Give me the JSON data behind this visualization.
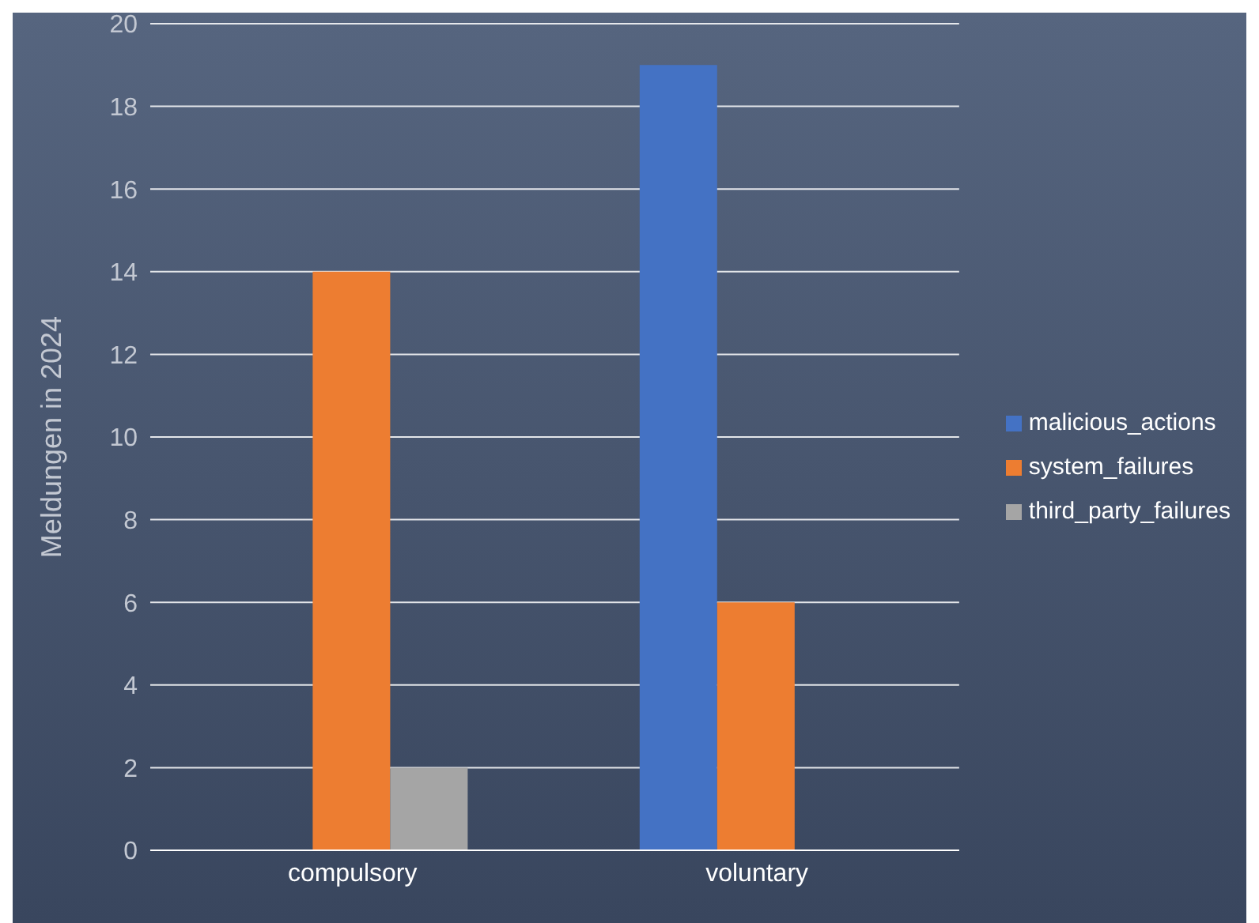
{
  "chart_data": {
    "type": "bar",
    "ylabel": "Meldungen in 2024",
    "categories": [
      "compulsory",
      "voluntary"
    ],
    "series": [
      {
        "name": "malicious_actions",
        "color": "#4472c4",
        "values": [
          0,
          19
        ]
      },
      {
        "name": "system_failures",
        "color": "#ed7d31",
        "values": [
          14,
          6
        ]
      },
      {
        "name": "third_party_failures",
        "color": "#a5a5a5",
        "values": [
          2,
          0
        ]
      }
    ],
    "ylim": [
      0,
      20
    ],
    "yticks": [
      0,
      2,
      4,
      6,
      8,
      10,
      12,
      14,
      16,
      18,
      20
    ],
    "grid": "y",
    "legend": "right"
  }
}
